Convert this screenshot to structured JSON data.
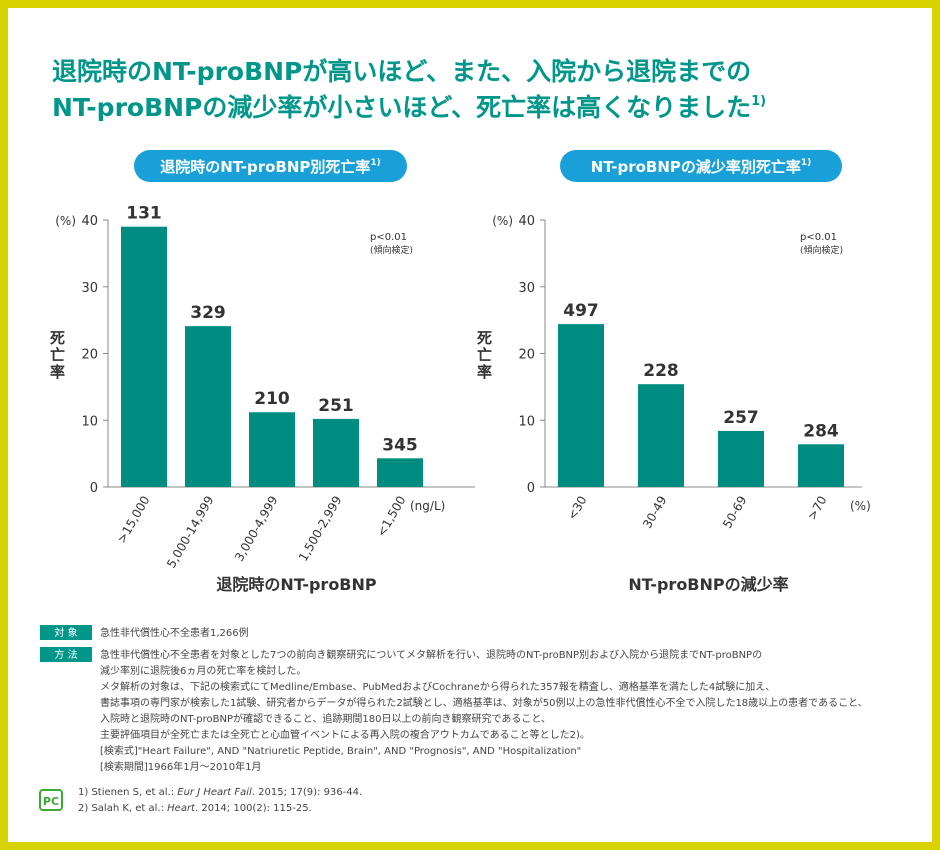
{
  "headline": {
    "lines": [
      "退院時のNT-proBNPが高いほど、また、入院から退院までの",
      "NT-proBNPの減少率が小さいほど、死亡率は高くなりました"
    ],
    "ref": "1)"
  },
  "chart_data": [
    {
      "type": "bar",
      "title": "退院時のNT-proBNP別死亡率",
      "title_ref": "1)",
      "x_label": "退院時のNT-proBNP",
      "x_unit": "(ng/L)",
      "y_label": "死亡率",
      "y_unit": "(%)",
      "categories": [
        ">15,000",
        "5,000-14,999",
        "3,000-4,999",
        "1,500-2,999",
        "<1,500"
      ],
      "values": [
        39,
        24.1,
        11.2,
        10.2,
        4.3
      ],
      "bar_labels": [
        131,
        329,
        210,
        251,
        345
      ],
      "color": "#008c80",
      "ylim": [
        0,
        40
      ],
      "yticks": [
        0,
        10,
        20,
        30,
        40
      ],
      "grid": false,
      "annotations": [
        "p<0.01",
        "(傾向検定)"
      ]
    },
    {
      "type": "bar",
      "title": "NT-proBNPの減少率別死亡率",
      "title_ref": "1)",
      "x_label": "NT-proBNPの減少率",
      "x_unit": "(%)",
      "y_label": "死亡率",
      "y_unit": "(%)",
      "categories": [
        "<30",
        "30-49",
        "50-69",
        ">70"
      ],
      "values": [
        24.4,
        15.4,
        8.4,
        6.4
      ],
      "bar_labels": [
        497,
        228,
        257,
        284
      ],
      "color": "#008c80",
      "ylim": [
        0,
        40
      ],
      "yticks": [
        0,
        10,
        20,
        30,
        40
      ],
      "grid": false,
      "annotations": [
        "p<0.01",
        "(傾向検定)"
      ]
    }
  ],
  "methods": {
    "subject_label": "対 象",
    "subject": "急性非代償性心不全患者1,266例",
    "method_label": "方 法",
    "method_lines": [
      "急性非代償性心不全患者を対象とした7つの前向き観察研究についてメタ解析を行い、退院時のNT-proBNP別および入院から退院までNT-proBNPの",
      "減少率別に退院後6ヵ月の死亡率を検討した。",
      "メタ解析の対象は、下記の検索式にてMedline/Embase、PubMedおよびCochraneから得られた357報を精査し、適格基準を満たした4試験に加え、",
      "書誌事項の専門家が検索した1試験、研究者からデータが得られた2試験とし、適格基準は、対象が50例以上の急性非代償性心不全で入院した18歳以上の患者であること、",
      "入院時と退院時のNT-proBNPが確認できること、追跡期間180日以上の前向き観察研究であること、",
      "主要評価項目が全死亡または全死亡と心血管イベントによる再入院の複合アウトカムであること等とした2)。",
      "[検索式]\"Heart Failure\", AND \"Natriuretic Peptide, Brain\", AND \"Prognosis\", AND \"Hospitalization\"",
      "[検索期間]1966年1月～2010年1月"
    ]
  },
  "references": [
    {
      "pre": "1) Stienen S, et al.: ",
      "journal": "Eur J Heart Fail",
      "post": ". 2015; 17(9): 936-44."
    },
    {
      "pre": "2) Salah K, et al.: ",
      "journal": "Heart",
      "post": ". 2014; 100(2): 115-25."
    }
  ],
  "logo": "PC"
}
